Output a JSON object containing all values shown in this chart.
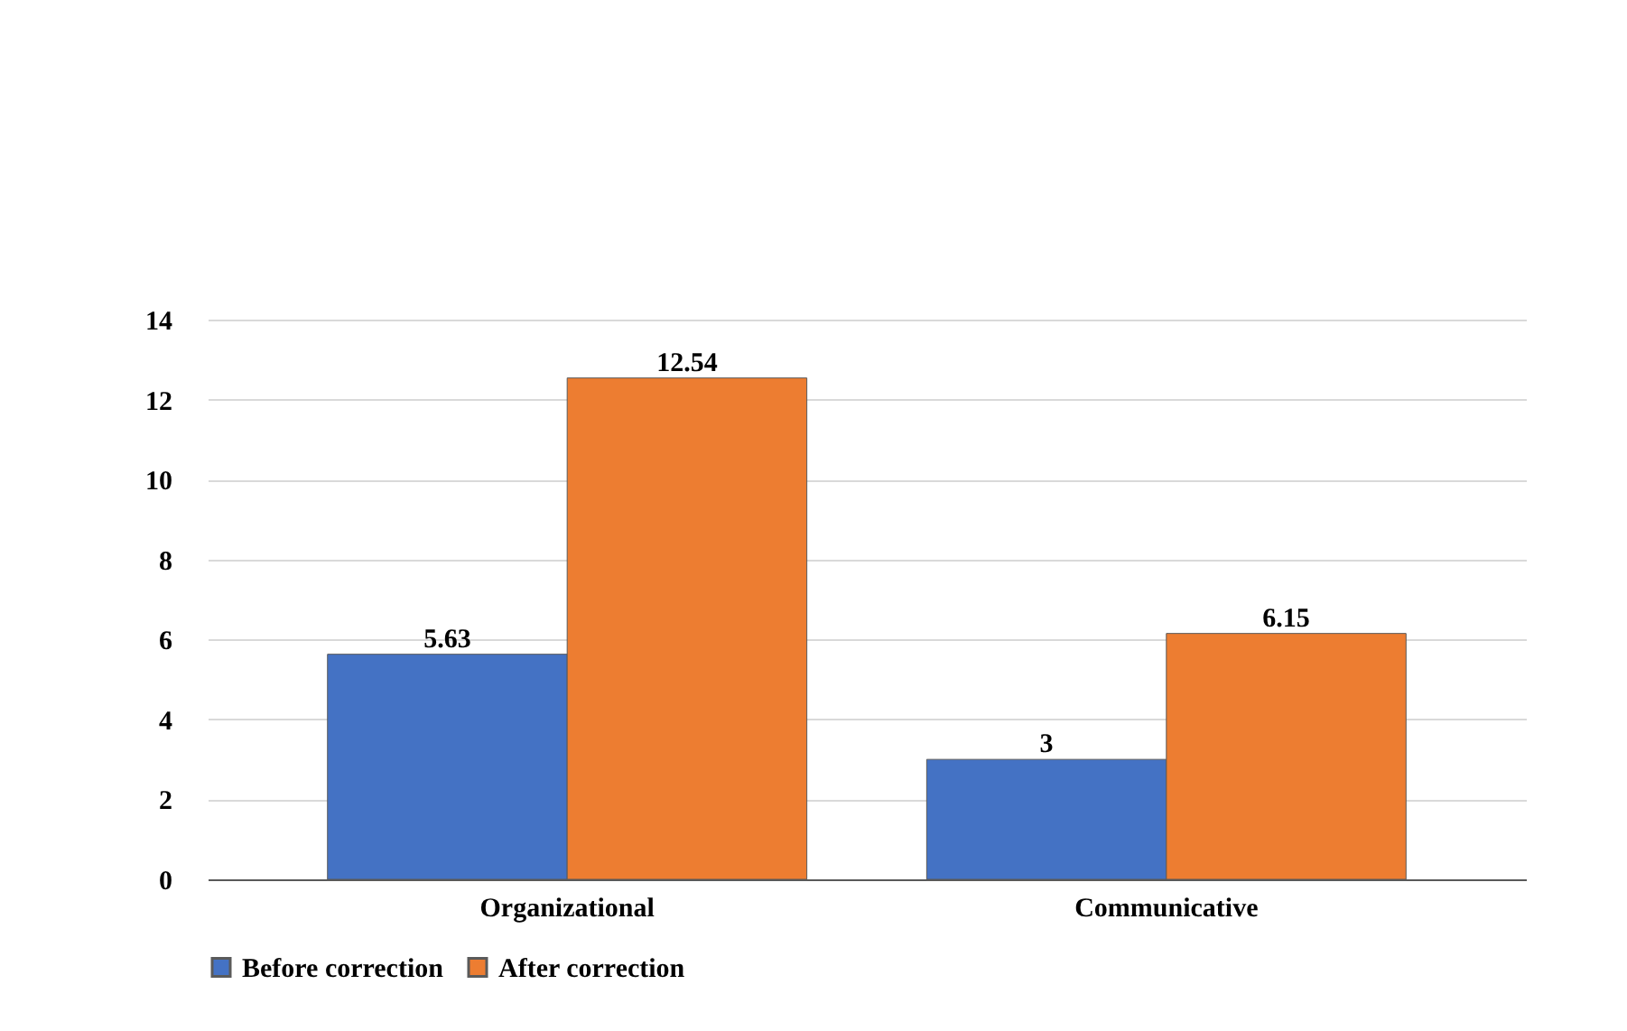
{
  "chart_data": {
    "type": "bar",
    "categories": [
      "Organizational",
      "Communicative"
    ],
    "series": [
      {
        "name": "Before correction",
        "color": "#4472c4",
        "values": [
          5.63,
          3
        ]
      },
      {
        "name": "After correction",
        "color": "#ed7d31",
        "values": [
          12.54,
          6.15
        ]
      }
    ],
    "ylim": [
      0,
      14
    ],
    "yticks": [
      0,
      2,
      4,
      6,
      8,
      10,
      12,
      14
    ],
    "grid": "y",
    "legend": "bottom",
    "data_labels": true
  }
}
